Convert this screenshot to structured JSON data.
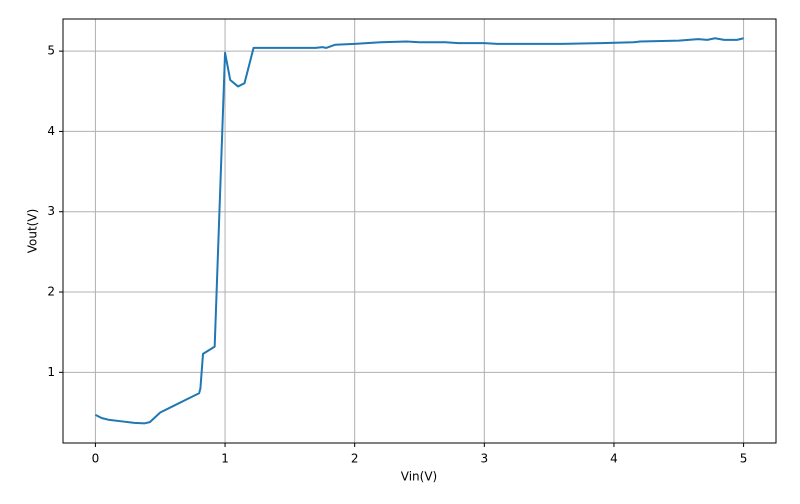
{
  "chart_data": {
    "type": "line",
    "xlabel": "Vin(V)",
    "ylabel": "Vout(V)",
    "x": [
      0,
      0.05,
      0.1,
      0.2,
      0.3,
      0.38,
      0.42,
      0.5,
      0.6,
      0.7,
      0.8,
      0.81,
      0.83,
      0.92,
      1.0,
      1.04,
      1.1,
      1.15,
      1.22,
      1.7,
      1.75,
      1.78,
      1.85,
      2.0,
      2.2,
      2.4,
      2.5,
      2.7,
      2.8,
      3.0,
      3.1,
      3.3,
      3.6,
      3.9,
      4.15,
      4.2,
      4.5,
      4.65,
      4.72,
      4.78,
      4.85,
      4.95,
      5.0
    ],
    "series": [
      {
        "color": "#1f77b4",
        "values": [
          0.47,
          0.43,
          0.41,
          0.39,
          0.37,
          0.365,
          0.38,
          0.5,
          0.58,
          0.66,
          0.74,
          0.8,
          1.23,
          1.32,
          4.98,
          4.64,
          4.56,
          4.6,
          5.04,
          5.04,
          5.05,
          5.04,
          5.08,
          5.09,
          5.11,
          5.12,
          5.11,
          5.11,
          5.1,
          5.1,
          5.09,
          5.09,
          5.09,
          5.1,
          5.11,
          5.12,
          5.13,
          5.15,
          5.14,
          5.16,
          5.14,
          5.14,
          5.16
        ]
      }
    ],
    "xlim": [
      -0.25,
      5.25
    ],
    "ylim": [
      0.12,
      5.4
    ],
    "xticks": [
      0,
      1,
      2,
      3,
      4,
      5
    ],
    "yticks": [
      1,
      2,
      3,
      4,
      5
    ],
    "grid": true
  }
}
